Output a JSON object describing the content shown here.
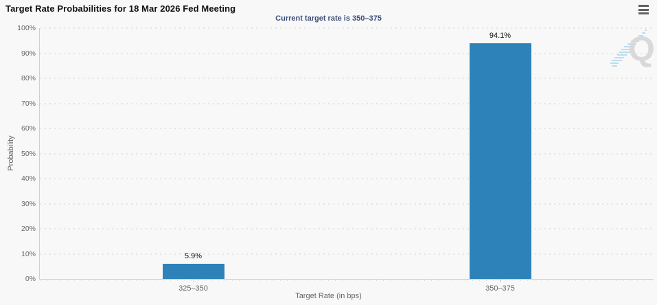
{
  "header": {
    "title": "Target Rate Probabilities for 18 Mar 2026 Fed Meeting"
  },
  "menu": {
    "icon": "hamburger-menu-icon"
  },
  "watermark": {
    "letter": "Q"
  },
  "chart_data": {
    "type": "bar",
    "title": "Target Rate Probabilities for 18 Mar 2026 Fed Meeting",
    "subtitle": "Current target rate is 350–375",
    "categories": [
      "325–350",
      "350–375"
    ],
    "values": [
      5.9,
      94.1
    ],
    "data_labels": [
      "5.9%",
      "94.1%"
    ],
    "xlabel": "Target Rate (in bps)",
    "ylabel": "Probability",
    "ylim": [
      0,
      100
    ],
    "yticks": [
      0,
      10,
      20,
      30,
      40,
      50,
      60,
      70,
      80,
      90,
      100
    ],
    "ytick_suffix": "%",
    "grid": "dotted-horizontal",
    "legend": "none",
    "colors": {
      "bar": "#2d82ba",
      "subtitle": "#3e4d7a",
      "axis_text": "#666666",
      "axis_line": "#cccccc",
      "background": "#f8f8f8"
    }
  }
}
